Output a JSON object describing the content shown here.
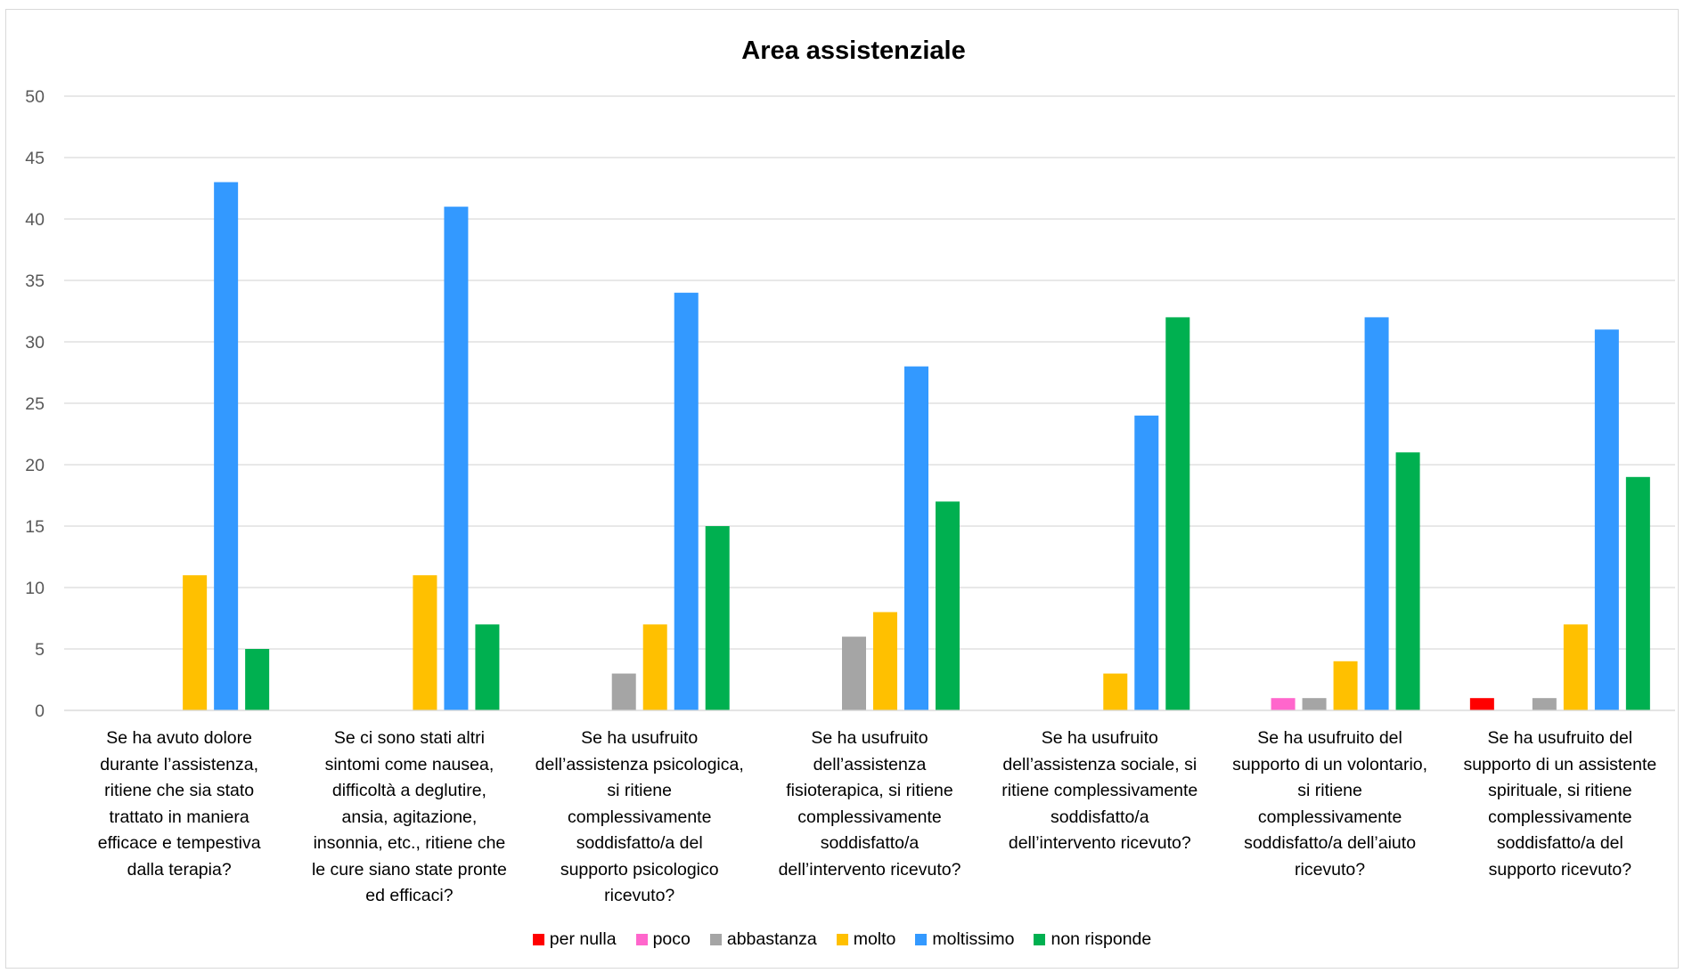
{
  "chart_data": {
    "type": "bar",
    "title": "Area assistenziale",
    "xlabel": "",
    "ylabel": "",
    "ylim": [
      0,
      50
    ],
    "yticks": [
      0,
      5,
      10,
      15,
      20,
      25,
      30,
      35,
      40,
      45,
      50
    ],
    "grid": true,
    "legend_position": "bottom",
    "categories": [
      "Se ha avuto dolore durante l’assistenza, ritiene che sia stato trattato in maniera efficace e tempestiva dalla terapia?",
      "Se ci sono stati altri sintomi come nausea, difficoltà a deglutire, ansia, agitazione, insonnia, etc., ritiene che le cure siano state pronte ed efficaci?",
      "Se ha usufruito dell’assistenza psicologica, si ritiene complessivamente soddisfatto/a del supporto psicologico ricevuto?",
      "Se ha usufruito dell’assistenza fisioterapica, si ritiene complessivamente soddisfatto/a dell’intervento ricevuto?",
      "Se ha usufruito dell’assistenza sociale, si ritiene complessivamente soddisfatto/a dell’intervento ricevuto?",
      "Se ha usufruito del supporto di un volontario, si ritiene complessivamente soddisfatto/a dell’aiuto ricevuto?",
      "Se ha usufruito del supporto di un assistente spirituale, si ritiene complessivamente soddisfatto/a del supporto ricevuto?"
    ],
    "category_lines": [
      [
        "Se ha avuto dolore",
        "durante l’assistenza,",
        "ritiene che sia stato",
        "trattato in maniera",
        "efficace e tempestiva",
        "dalla terapia?"
      ],
      [
        "Se ci sono stati altri",
        "sintomi come nausea,",
        "difficoltà a deglutire,",
        "ansia, agitazione,",
        "insonnia, etc., ritiene che",
        "le cure siano state pronte",
        "ed efficaci?"
      ],
      [
        "Se ha usufruito",
        "dell’assistenza psicologica,",
        "si ritiene",
        "complessivamente",
        "soddisfatto/a del",
        "supporto psicologico",
        "ricevuto?"
      ],
      [
        "Se ha usufruito",
        "dell’assistenza",
        "fisioterapica, si ritiene",
        "complessivamente",
        "soddisfatto/a",
        "dell’intervento ricevuto?"
      ],
      [
        "Se ha usufruito",
        "dell’assistenza sociale, si",
        "ritiene complessivamente",
        "soddisfatto/a",
        "dell’intervento ricevuto?"
      ],
      [
        "Se ha usufruito del",
        "supporto di un volontario,",
        "si ritiene",
        "complessivamente",
        "soddisfatto/a dell’aiuto",
        "ricevuto?"
      ],
      [
        "Se ha usufruito del",
        "supporto di un assistente",
        "spirituale, si ritiene",
        "complessivamente",
        "soddisfatto/a del",
        "supporto ricevuto?"
      ]
    ],
    "series": [
      {
        "name": "per nulla",
        "color": "#ff0000",
        "values": [
          0,
          0,
          0,
          0,
          0,
          0,
          1
        ]
      },
      {
        "name": "poco",
        "color": "#ff66cc",
        "values": [
          0,
          0,
          0,
          0,
          0,
          1,
          0
        ]
      },
      {
        "name": "abbastanza",
        "color": "#a5a5a5",
        "values": [
          0,
          0,
          3,
          6,
          0,
          1,
          1
        ]
      },
      {
        "name": "molto",
        "color": "#ffc000",
        "values": [
          11,
          11,
          7,
          8,
          3,
          4,
          7
        ]
      },
      {
        "name": "moltissimo",
        "color": "#3399ff",
        "values": [
          43,
          41,
          34,
          28,
          24,
          32,
          31
        ]
      },
      {
        "name": "non risponde",
        "color": "#00b050",
        "values": [
          5,
          7,
          15,
          17,
          32,
          21,
          19
        ]
      }
    ]
  }
}
